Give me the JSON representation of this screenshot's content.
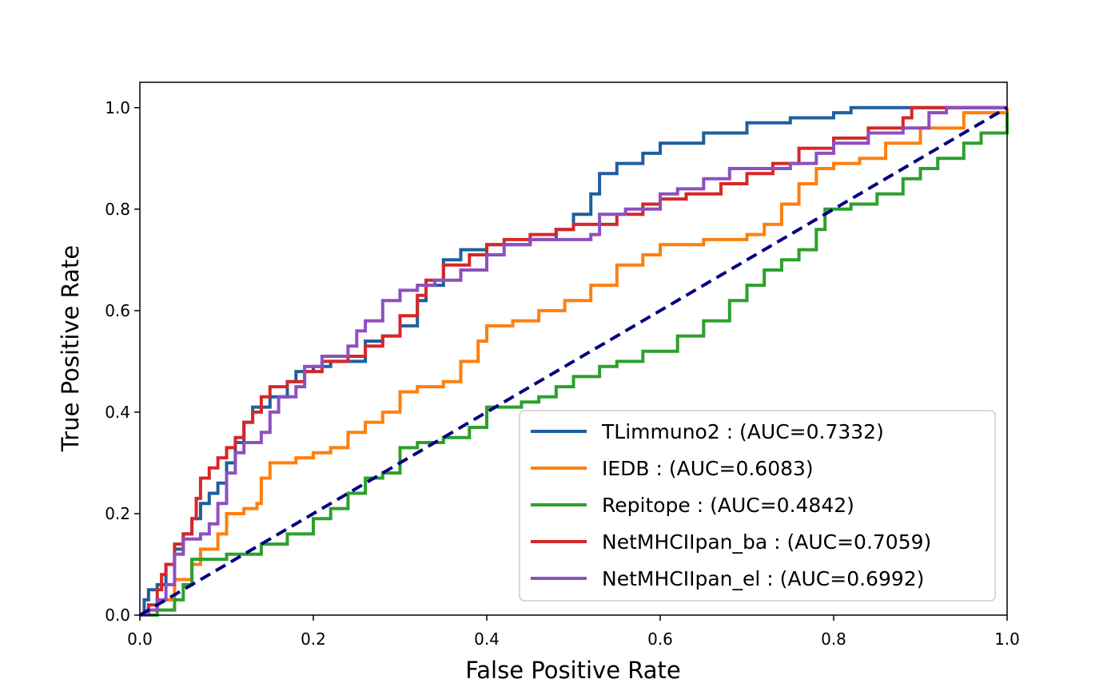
{
  "chart_data": {
    "type": "line",
    "xlabel": "False Positive Rate",
    "ylabel": "True Positive Rate",
    "xlim": [
      0.0,
      1.0
    ],
    "ylim": [
      0.0,
      1.05
    ],
    "xticks": [
      "0.0",
      "0.2",
      "0.4",
      "0.6",
      "0.8",
      "1.0"
    ],
    "yticks": [
      "0.0",
      "0.2",
      "0.4",
      "0.6",
      "0.8",
      "1.0"
    ],
    "grid": false,
    "legend_position": "lower-right",
    "reference_line": {
      "x": [
        0,
        1
      ],
      "y": [
        0,
        1
      ],
      "color": "#000080",
      "style": "dashed"
    },
    "series": [
      {
        "name": "TLimmuno2 : (AUC=0.7332)",
        "color": "#1f5f9f",
        "points": [
          [
            0,
            0
          ],
          [
            0.005,
            0.03
          ],
          [
            0.01,
            0.05
          ],
          [
            0.02,
            0.06
          ],
          [
            0.03,
            0.1
          ],
          [
            0.04,
            0.13
          ],
          [
            0.05,
            0.16
          ],
          [
            0.06,
            0.19
          ],
          [
            0.07,
            0.22
          ],
          [
            0.08,
            0.24
          ],
          [
            0.09,
            0.26
          ],
          [
            0.1,
            0.3
          ],
          [
            0.11,
            0.34
          ],
          [
            0.12,
            0.38
          ],
          [
            0.13,
            0.41
          ],
          [
            0.14,
            0.41
          ],
          [
            0.15,
            0.43
          ],
          [
            0.17,
            0.46
          ],
          [
            0.18,
            0.48
          ],
          [
            0.2,
            0.49
          ],
          [
            0.22,
            0.5
          ],
          [
            0.24,
            0.5
          ],
          [
            0.26,
            0.54
          ],
          [
            0.28,
            0.55
          ],
          [
            0.3,
            0.57
          ],
          [
            0.32,
            0.62
          ],
          [
            0.33,
            0.65
          ],
          [
            0.35,
            0.7
          ],
          [
            0.37,
            0.72
          ],
          [
            0.4,
            0.73
          ],
          [
            0.45,
            0.74
          ],
          [
            0.48,
            0.76
          ],
          [
            0.5,
            0.79
          ],
          [
            0.52,
            0.83
          ],
          [
            0.53,
            0.87
          ],
          [
            0.55,
            0.89
          ],
          [
            0.58,
            0.91
          ],
          [
            0.6,
            0.93
          ],
          [
            0.65,
            0.95
          ],
          [
            0.7,
            0.97
          ],
          [
            0.75,
            0.98
          ],
          [
            0.8,
            0.99
          ],
          [
            0.82,
            1.0
          ],
          [
            0.9,
            1.0
          ],
          [
            1.0,
            1.0
          ]
        ]
      },
      {
        "name": "IEDB : (AUC=0.6083)",
        "color": "#ff7f0e",
        "points": [
          [
            0,
            0
          ],
          [
            0.02,
            0.03
          ],
          [
            0.04,
            0.07
          ],
          [
            0.06,
            0.1
          ],
          [
            0.07,
            0.13
          ],
          [
            0.09,
            0.16
          ],
          [
            0.1,
            0.2
          ],
          [
            0.12,
            0.21
          ],
          [
            0.135,
            0.22
          ],
          [
            0.14,
            0.27
          ],
          [
            0.15,
            0.3
          ],
          [
            0.18,
            0.31
          ],
          [
            0.2,
            0.32
          ],
          [
            0.22,
            0.33
          ],
          [
            0.24,
            0.36
          ],
          [
            0.26,
            0.38
          ],
          [
            0.28,
            0.4
          ],
          [
            0.3,
            0.44
          ],
          [
            0.32,
            0.45
          ],
          [
            0.34,
            0.45
          ],
          [
            0.35,
            0.46
          ],
          [
            0.37,
            0.5
          ],
          [
            0.39,
            0.54
          ],
          [
            0.4,
            0.57
          ],
          [
            0.43,
            0.58
          ],
          [
            0.46,
            0.6
          ],
          [
            0.49,
            0.62
          ],
          [
            0.52,
            0.65
          ],
          [
            0.55,
            0.69
          ],
          [
            0.58,
            0.71
          ],
          [
            0.6,
            0.73
          ],
          [
            0.65,
            0.74
          ],
          [
            0.7,
            0.75
          ],
          [
            0.72,
            0.77
          ],
          [
            0.74,
            0.81
          ],
          [
            0.76,
            0.85
          ],
          [
            0.78,
            0.88
          ],
          [
            0.8,
            0.89
          ],
          [
            0.83,
            0.9
          ],
          [
            0.86,
            0.93
          ],
          [
            0.9,
            0.96
          ],
          [
            0.95,
            0.99
          ],
          [
            1.0,
            1.0
          ]
        ]
      },
      {
        "name": "Repitope : (AUC=0.4842)",
        "color": "#2ca02c",
        "points": [
          [
            0,
            0
          ],
          [
            0.02,
            0.01
          ],
          [
            0.04,
            0.03
          ],
          [
            0.05,
            0.06
          ],
          [
            0.06,
            0.11
          ],
          [
            0.1,
            0.12
          ],
          [
            0.14,
            0.14
          ],
          [
            0.17,
            0.16
          ],
          [
            0.2,
            0.19
          ],
          [
            0.22,
            0.21
          ],
          [
            0.24,
            0.24
          ],
          [
            0.26,
            0.27
          ],
          [
            0.28,
            0.28
          ],
          [
            0.3,
            0.33
          ],
          [
            0.32,
            0.34
          ],
          [
            0.35,
            0.35
          ],
          [
            0.38,
            0.37
          ],
          [
            0.4,
            0.41
          ],
          [
            0.44,
            0.42
          ],
          [
            0.46,
            0.43
          ],
          [
            0.48,
            0.45
          ],
          [
            0.5,
            0.47
          ],
          [
            0.53,
            0.49
          ],
          [
            0.55,
            0.5
          ],
          [
            0.58,
            0.52
          ],
          [
            0.62,
            0.55
          ],
          [
            0.65,
            0.58
          ],
          [
            0.68,
            0.62
          ],
          [
            0.7,
            0.65
          ],
          [
            0.72,
            0.68
          ],
          [
            0.74,
            0.7
          ],
          [
            0.76,
            0.72
          ],
          [
            0.78,
            0.76
          ],
          [
            0.79,
            0.8
          ],
          [
            0.82,
            0.81
          ],
          [
            0.85,
            0.83
          ],
          [
            0.88,
            0.86
          ],
          [
            0.9,
            0.88
          ],
          [
            0.92,
            0.9
          ],
          [
            0.95,
            0.93
          ],
          [
            0.97,
            0.95
          ],
          [
            1.0,
            0.99
          ]
        ]
      },
      {
        "name": "NetMHCIIpan_ba : (AUC=0.7059)",
        "color": "#d62728",
        "points": [
          [
            0,
            0
          ],
          [
            0.01,
            0.02
          ],
          [
            0.02,
            0.05
          ],
          [
            0.025,
            0.08
          ],
          [
            0.03,
            0.1
          ],
          [
            0.04,
            0.14
          ],
          [
            0.05,
            0.16
          ],
          [
            0.06,
            0.19
          ],
          [
            0.065,
            0.23
          ],
          [
            0.07,
            0.27
          ],
          [
            0.08,
            0.29
          ],
          [
            0.09,
            0.31
          ],
          [
            0.1,
            0.33
          ],
          [
            0.11,
            0.35
          ],
          [
            0.12,
            0.38
          ],
          [
            0.13,
            0.4
          ],
          [
            0.14,
            0.43
          ],
          [
            0.15,
            0.45
          ],
          [
            0.17,
            0.46
          ],
          [
            0.19,
            0.48
          ],
          [
            0.21,
            0.5
          ],
          [
            0.24,
            0.51
          ],
          [
            0.26,
            0.53
          ],
          [
            0.28,
            0.55
          ],
          [
            0.3,
            0.59
          ],
          [
            0.32,
            0.63
          ],
          [
            0.33,
            0.66
          ],
          [
            0.35,
            0.69
          ],
          [
            0.38,
            0.71
          ],
          [
            0.4,
            0.73
          ],
          [
            0.42,
            0.74
          ],
          [
            0.45,
            0.75
          ],
          [
            0.48,
            0.76
          ],
          [
            0.5,
            0.77
          ],
          [
            0.52,
            0.77
          ],
          [
            0.55,
            0.79
          ],
          [
            0.58,
            0.81
          ],
          [
            0.6,
            0.82
          ],
          [
            0.63,
            0.83
          ],
          [
            0.67,
            0.85
          ],
          [
            0.7,
            0.87
          ],
          [
            0.73,
            0.89
          ],
          [
            0.76,
            0.92
          ],
          [
            0.8,
            0.94
          ],
          [
            0.84,
            0.96
          ],
          [
            0.88,
            0.98
          ],
          [
            0.89,
            1.0
          ],
          [
            1.0,
            1.0
          ]
        ]
      },
      {
        "name": "NetMHCIIpan_el : (AUC=0.6992)",
        "color": "#8e4fbf",
        "points": [
          [
            0,
            0
          ],
          [
            0.01,
            0.01
          ],
          [
            0.02,
            0.03
          ],
          [
            0.03,
            0.06
          ],
          [
            0.04,
            0.12
          ],
          [
            0.05,
            0.15
          ],
          [
            0.07,
            0.16
          ],
          [
            0.08,
            0.18
          ],
          [
            0.09,
            0.22
          ],
          [
            0.1,
            0.28
          ],
          [
            0.11,
            0.32
          ],
          [
            0.12,
            0.34
          ],
          [
            0.14,
            0.36
          ],
          [
            0.15,
            0.4
          ],
          [
            0.16,
            0.43
          ],
          [
            0.18,
            0.45
          ],
          [
            0.19,
            0.49
          ],
          [
            0.21,
            0.51
          ],
          [
            0.24,
            0.53
          ],
          [
            0.25,
            0.56
          ],
          [
            0.26,
            0.58
          ],
          [
            0.28,
            0.62
          ],
          [
            0.3,
            0.64
          ],
          [
            0.32,
            0.65
          ],
          [
            0.34,
            0.66
          ],
          [
            0.37,
            0.68
          ],
          [
            0.4,
            0.71
          ],
          [
            0.42,
            0.73
          ],
          [
            0.45,
            0.74
          ],
          [
            0.48,
            0.74
          ],
          [
            0.52,
            0.75
          ],
          [
            0.53,
            0.79
          ],
          [
            0.56,
            0.8
          ],
          [
            0.6,
            0.83
          ],
          [
            0.62,
            0.84
          ],
          [
            0.65,
            0.86
          ],
          [
            0.68,
            0.88
          ],
          [
            0.72,
            0.88
          ],
          [
            0.75,
            0.89
          ],
          [
            0.78,
            0.91
          ],
          [
            0.8,
            0.93
          ],
          [
            0.84,
            0.95
          ],
          [
            0.88,
            0.96
          ],
          [
            0.91,
            0.99
          ],
          [
            0.93,
            1.0
          ],
          [
            1.0,
            1.0
          ]
        ]
      }
    ]
  }
}
